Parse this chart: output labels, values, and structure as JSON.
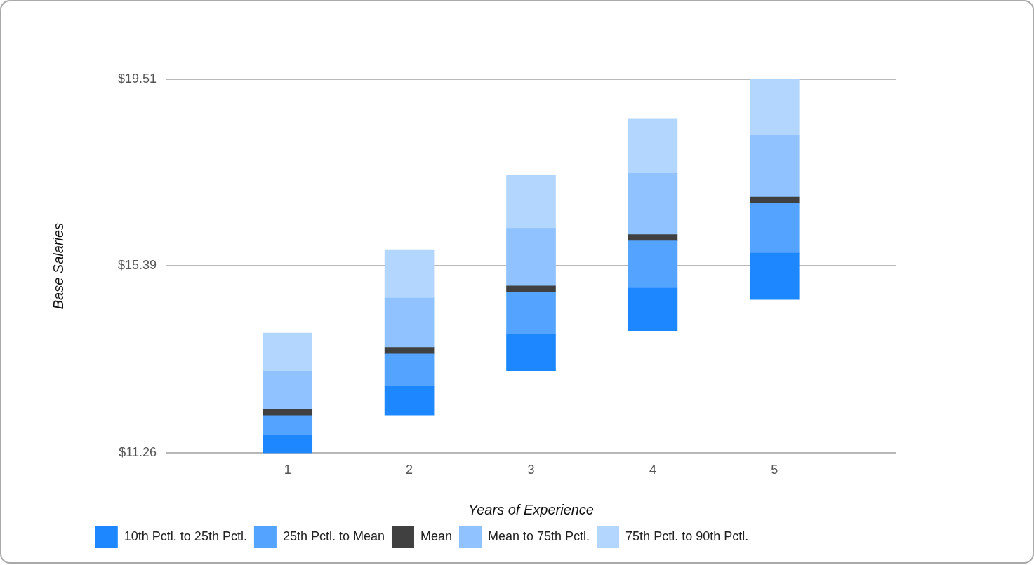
{
  "chart_data": {
    "type": "bar",
    "xlabel": "Years of Experience",
    "ylabel": "Base Salaries",
    "categories": [
      "1",
      "2",
      "3",
      "4",
      "5"
    ],
    "series": [
      {
        "name": "10th Pctl. to 25th Pctl.",
        "color": "#1c87ff",
        "base": [
          11.26,
          12.1,
          13.08,
          13.96,
          14.65
        ],
        "values": [
          0.4,
          0.63,
          0.81,
          0.94,
          1.02
        ]
      },
      {
        "name": "25th Pctl. to Mean",
        "color": "#54a4ff",
        "base": [
          11.66,
          12.73,
          13.89,
          14.9,
          15.67
        ],
        "values": [
          0.43,
          0.72,
          0.92,
          1.04,
          1.1
        ]
      },
      {
        "name": "Mean",
        "color": "#404040",
        "base": [
          12.09,
          13.45,
          14.81,
          15.94,
          16.77
        ],
        "values": [
          0.14,
          0.14,
          0.14,
          0.14,
          0.14
        ]
      },
      {
        "name": "Mean to 75th Pctl.",
        "color": "#8fc2ff",
        "base": [
          12.23,
          13.59,
          14.95,
          16.08,
          16.91
        ],
        "values": [
          0.84,
          1.09,
          1.27,
          1.35,
          1.37
        ]
      },
      {
        "name": "75th Pctl. to 90th Pctl.",
        "color": "#b3d6ff",
        "base": [
          13.07,
          14.68,
          16.22,
          17.43,
          18.28
        ],
        "values": [
          0.84,
          1.07,
          1.18,
          1.2,
          1.23
        ]
      }
    ],
    "ylim": [
      11.26,
      19.51
    ],
    "yticks": [
      {
        "value": 11.26,
        "label": "$11.26"
      },
      {
        "value": 15.39,
        "label": "$15.39"
      },
      {
        "value": 19.51,
        "label": "$19.51"
      }
    ],
    "grid": "y",
    "legend": "bottom"
  }
}
